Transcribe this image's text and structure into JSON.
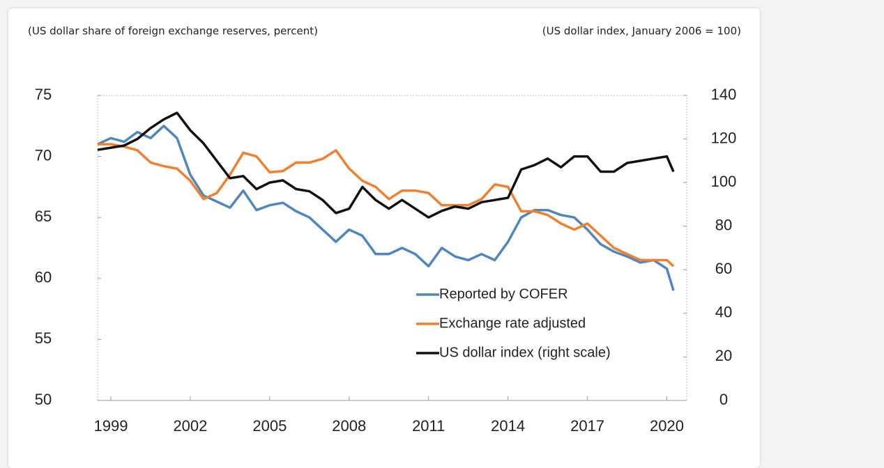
{
  "chart_data": {
    "type": "line",
    "y_label": "(US dollar share of foreign exchange reserves, percent)",
    "y2_label": "(US dollar index, January 2006 = 100)",
    "x": [
      1999,
      1999.5,
      2000,
      2000.5,
      2001,
      2001.5,
      2002,
      2002.5,
      2003,
      2003.5,
      2004,
      2004.5,
      2005,
      2005.5,
      2006,
      2006.5,
      2007,
      2007.5,
      2008,
      2008.5,
      2009,
      2009.5,
      2010,
      2010.5,
      2011,
      2011.5,
      2012,
      2012.5,
      2013,
      2013.5,
      2014,
      2014.5,
      2015,
      2015.5,
      2016,
      2016.5,
      2017,
      2017.5,
      2018,
      2018.5,
      2019,
      2019.5,
      2020,
      2020.5,
      2020.75
    ],
    "xlim": [
      1999,
      2021.25
    ],
    "xticks": [
      {
        "value": 1999.5,
        "label": "1999"
      },
      {
        "value": 2002.5,
        "label": "2002"
      },
      {
        "value": 2005.5,
        "label": "2005"
      },
      {
        "value": 2008.5,
        "label": "2008"
      },
      {
        "value": 2011.5,
        "label": "2011"
      },
      {
        "value": 2014.5,
        "label": "2014"
      },
      {
        "value": 2017.5,
        "label": "2017"
      },
      {
        "value": 2020.5,
        "label": "2020"
      }
    ],
    "ylim": [
      50,
      75
    ],
    "yticks": [
      50,
      55,
      60,
      65,
      70,
      75
    ],
    "y2lim": [
      0,
      140
    ],
    "y2ticks": [
      0,
      20,
      40,
      60,
      80,
      100,
      120,
      140
    ],
    "legend": "lower right",
    "series": [
      {
        "name": "Reported by COFER",
        "color": "#4f86c0",
        "values": [
          71.0,
          71.5,
          71.2,
          72.0,
          71.5,
          72.5,
          71.5,
          68.5,
          66.8,
          66.3,
          65.8,
          67.2,
          65.6,
          66.0,
          66.2,
          65.5,
          65.0,
          64.0,
          63.0,
          64.0,
          63.5,
          62.0,
          62.0,
          62.5,
          62.0,
          61.0,
          62.5,
          61.8,
          61.5,
          62.0,
          61.5,
          63.0,
          65.0,
          65.6,
          65.6,
          65.2,
          65.0,
          64.0,
          62.8,
          62.2,
          61.8,
          61.3,
          61.5,
          60.8,
          59.0
        ]
      },
      {
        "name": "Exchange rate adjusted",
        "color": "#f07f30",
        "values": [
          71.0,
          71.0,
          70.8,
          70.5,
          69.5,
          69.2,
          69.0,
          68.0,
          66.5,
          67.0,
          68.5,
          70.3,
          70.0,
          68.7,
          68.8,
          69.5,
          69.5,
          69.8,
          70.5,
          69.0,
          68.0,
          67.5,
          66.5,
          67.2,
          67.2,
          67.0,
          66.0,
          66.0,
          66.0,
          66.5,
          67.7,
          67.5,
          65.5,
          65.5,
          65.2,
          64.5,
          64.0,
          64.5,
          63.5,
          62.5,
          62.0,
          61.5,
          61.5,
          61.5,
          61.0
        ]
      },
      {
        "name": "US dollar index (right scale)",
        "color": "#111111",
        "axis": "y2",
        "values": [
          115,
          116,
          117,
          120,
          125,
          129,
          132,
          124,
          118,
          110,
          102,
          103,
          97,
          100,
          101,
          97,
          96,
          92,
          86,
          88,
          98,
          92,
          88,
          92,
          88,
          84,
          87,
          89,
          88,
          91,
          92,
          93,
          106,
          108,
          111,
          107,
          112,
          112,
          105,
          105,
          109,
          110,
          111,
          112,
          105
        ]
      }
    ]
  }
}
